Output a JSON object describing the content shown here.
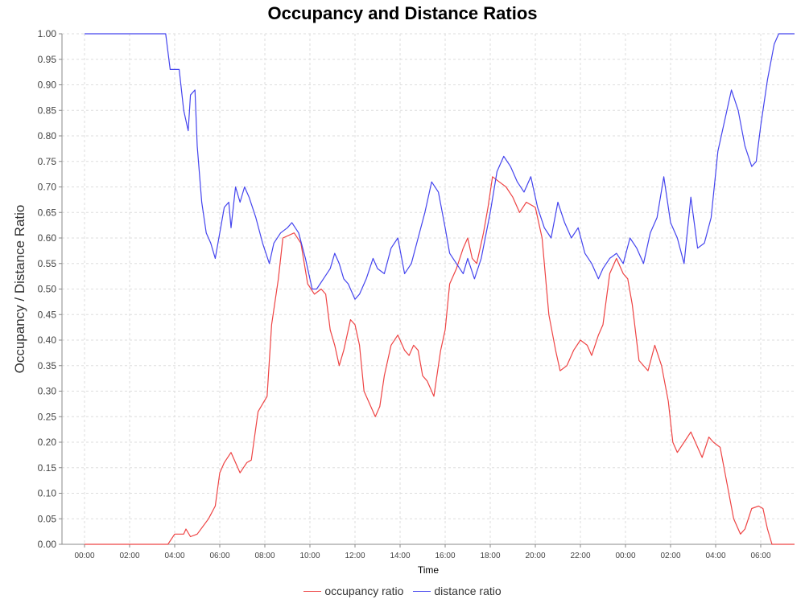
{
  "chart_data": {
    "type": "line",
    "title": "Occupancy and Distance Ratios",
    "xlabel": "Time",
    "ylabel": "Occupancy / Distance Ratio",
    "ylim": [
      0,
      1
    ],
    "y_ticks": [
      "0.00",
      "0.05",
      "0.10",
      "0.15",
      "0.20",
      "0.25",
      "0.30",
      "0.35",
      "0.40",
      "0.45",
      "0.50",
      "0.55",
      "0.60",
      "0.65",
      "0.70",
      "0.75",
      "0.80",
      "0.85",
      "0.90",
      "0.95",
      "1.00"
    ],
    "x_ticks": [
      "00:00",
      "02:00",
      "04:00",
      "06:00",
      "08:00",
      "10:00",
      "12:00",
      "14:00",
      "16:00",
      "18:00",
      "20:00",
      "22:00",
      "00:00",
      "02:00",
      "04:00",
      "06:00"
    ],
    "x_unit": "hours",
    "x_range": [
      -1,
      31.5
    ],
    "grid": true,
    "legend_position": "bottom-center",
    "series": [
      {
        "name": "occupancy ratio",
        "color": "#ee4444",
        "points": [
          [
            0,
            0
          ],
          [
            3.7,
            0
          ],
          [
            4.0,
            0.02
          ],
          [
            4.4,
            0.02
          ],
          [
            4.5,
            0.03
          ],
          [
            4.7,
            0.015
          ],
          [
            5.0,
            0.02
          ],
          [
            5.5,
            0.05
          ],
          [
            5.8,
            0.075
          ],
          [
            6.0,
            0.14
          ],
          [
            6.2,
            0.16
          ],
          [
            6.5,
            0.18
          ],
          [
            6.9,
            0.14
          ],
          [
            7.2,
            0.16
          ],
          [
            7.4,
            0.165
          ],
          [
            7.7,
            0.26
          ],
          [
            8.1,
            0.29
          ],
          [
            8.3,
            0.43
          ],
          [
            8.6,
            0.52
          ],
          [
            8.8,
            0.6
          ],
          [
            9.3,
            0.61
          ],
          [
            9.6,
            0.59
          ],
          [
            9.9,
            0.51
          ],
          [
            10.2,
            0.49
          ],
          [
            10.5,
            0.5
          ],
          [
            10.7,
            0.49
          ],
          [
            10.9,
            0.42
          ],
          [
            11.1,
            0.39
          ],
          [
            11.3,
            0.35
          ],
          [
            11.5,
            0.38
          ],
          [
            11.8,
            0.44
          ],
          [
            12.0,
            0.43
          ],
          [
            12.2,
            0.39
          ],
          [
            12.4,
            0.3
          ],
          [
            12.7,
            0.27
          ],
          [
            12.9,
            0.25
          ],
          [
            13.1,
            0.27
          ],
          [
            13.3,
            0.33
          ],
          [
            13.6,
            0.39
          ],
          [
            13.9,
            0.41
          ],
          [
            14.2,
            0.38
          ],
          [
            14.4,
            0.37
          ],
          [
            14.6,
            0.39
          ],
          [
            14.8,
            0.38
          ],
          [
            15.0,
            0.33
          ],
          [
            15.2,
            0.32
          ],
          [
            15.5,
            0.29
          ],
          [
            15.8,
            0.38
          ],
          [
            16.0,
            0.42
          ],
          [
            16.2,
            0.51
          ],
          [
            16.5,
            0.54
          ],
          [
            16.8,
            0.58
          ],
          [
            17.0,
            0.6
          ],
          [
            17.2,
            0.56
          ],
          [
            17.4,
            0.55
          ],
          [
            17.7,
            0.61
          ],
          [
            17.9,
            0.66
          ],
          [
            18.1,
            0.72
          ],
          [
            18.4,
            0.71
          ],
          [
            18.7,
            0.7
          ],
          [
            19.0,
            0.68
          ],
          [
            19.3,
            0.65
          ],
          [
            19.6,
            0.67
          ],
          [
            20.0,
            0.66
          ],
          [
            20.3,
            0.6
          ],
          [
            20.6,
            0.45
          ],
          [
            20.9,
            0.38
          ],
          [
            21.1,
            0.34
          ],
          [
            21.4,
            0.35
          ],
          [
            21.7,
            0.38
          ],
          [
            22.0,
            0.4
          ],
          [
            22.3,
            0.39
          ],
          [
            22.5,
            0.37
          ],
          [
            22.8,
            0.41
          ],
          [
            23.0,
            0.43
          ],
          [
            23.3,
            0.53
          ],
          [
            23.6,
            0.56
          ],
          [
            23.9,
            0.53
          ],
          [
            24.1,
            0.52
          ],
          [
            24.3,
            0.47
          ],
          [
            24.6,
            0.36
          ],
          [
            25.0,
            0.34
          ],
          [
            25.3,
            0.39
          ],
          [
            25.6,
            0.35
          ],
          [
            25.9,
            0.28
          ],
          [
            26.1,
            0.2
          ],
          [
            26.3,
            0.18
          ],
          [
            26.6,
            0.2
          ],
          [
            26.9,
            0.22
          ],
          [
            27.1,
            0.2
          ],
          [
            27.4,
            0.17
          ],
          [
            27.7,
            0.21
          ],
          [
            27.9,
            0.2
          ],
          [
            28.2,
            0.19
          ],
          [
            28.5,
            0.12
          ],
          [
            28.8,
            0.05
          ],
          [
            29.1,
            0.02
          ],
          [
            29.3,
            0.03
          ],
          [
            29.6,
            0.07
          ],
          [
            29.9,
            0.075
          ],
          [
            30.1,
            0.07
          ],
          [
            30.3,
            0.03
          ],
          [
            30.5,
            0
          ],
          [
            31.5,
            0
          ]
        ]
      },
      {
        "name": "distance ratio",
        "color": "#4444ee",
        "points": [
          [
            0,
            1
          ],
          [
            3.6,
            1
          ],
          [
            3.8,
            0.93
          ],
          [
            4.2,
            0.93
          ],
          [
            4.4,
            0.85
          ],
          [
            4.6,
            0.81
          ],
          [
            4.7,
            0.88
          ],
          [
            4.9,
            0.89
          ],
          [
            5.0,
            0.78
          ],
          [
            5.2,
            0.67
          ],
          [
            5.4,
            0.61
          ],
          [
            5.6,
            0.59
          ],
          [
            5.8,
            0.56
          ],
          [
            6.0,
            0.61
          ],
          [
            6.2,
            0.66
          ],
          [
            6.4,
            0.67
          ],
          [
            6.5,
            0.62
          ],
          [
            6.7,
            0.7
          ],
          [
            6.9,
            0.67
          ],
          [
            7.1,
            0.7
          ],
          [
            7.3,
            0.68
          ],
          [
            7.6,
            0.64
          ],
          [
            7.9,
            0.59
          ],
          [
            8.2,
            0.55
          ],
          [
            8.4,
            0.59
          ],
          [
            8.7,
            0.61
          ],
          [
            9.0,
            0.62
          ],
          [
            9.2,
            0.63
          ],
          [
            9.5,
            0.61
          ],
          [
            9.8,
            0.56
          ],
          [
            10.1,
            0.5
          ],
          [
            10.3,
            0.5
          ],
          [
            10.6,
            0.52
          ],
          [
            10.9,
            0.54
          ],
          [
            11.1,
            0.57
          ],
          [
            11.3,
            0.55
          ],
          [
            11.5,
            0.52
          ],
          [
            11.7,
            0.51
          ],
          [
            12.0,
            0.48
          ],
          [
            12.2,
            0.49
          ],
          [
            12.5,
            0.52
          ],
          [
            12.8,
            0.56
          ],
          [
            13.0,
            0.54
          ],
          [
            13.3,
            0.53
          ],
          [
            13.6,
            0.58
          ],
          [
            13.9,
            0.6
          ],
          [
            14.2,
            0.53
          ],
          [
            14.5,
            0.55
          ],
          [
            14.8,
            0.6
          ],
          [
            15.1,
            0.65
          ],
          [
            15.4,
            0.71
          ],
          [
            15.7,
            0.69
          ],
          [
            16.0,
            0.62
          ],
          [
            16.2,
            0.57
          ],
          [
            16.5,
            0.55
          ],
          [
            16.8,
            0.53
          ],
          [
            17.0,
            0.56
          ],
          [
            17.3,
            0.52
          ],
          [
            17.6,
            0.56
          ],
          [
            18.0,
            0.65
          ],
          [
            18.3,
            0.73
          ],
          [
            18.6,
            0.76
          ],
          [
            18.9,
            0.74
          ],
          [
            19.2,
            0.71
          ],
          [
            19.5,
            0.69
          ],
          [
            19.8,
            0.72
          ],
          [
            20.1,
            0.66
          ],
          [
            20.4,
            0.62
          ],
          [
            20.7,
            0.6
          ],
          [
            21.0,
            0.67
          ],
          [
            21.3,
            0.63
          ],
          [
            21.6,
            0.6
          ],
          [
            21.9,
            0.62
          ],
          [
            22.2,
            0.57
          ],
          [
            22.5,
            0.55
          ],
          [
            22.8,
            0.52
          ],
          [
            23.0,
            0.54
          ],
          [
            23.3,
            0.56
          ],
          [
            23.6,
            0.57
          ],
          [
            23.9,
            0.55
          ],
          [
            24.2,
            0.6
          ],
          [
            24.5,
            0.58
          ],
          [
            24.8,
            0.55
          ],
          [
            25.1,
            0.61
          ],
          [
            25.4,
            0.64
          ],
          [
            25.7,
            0.72
          ],
          [
            26.0,
            0.63
          ],
          [
            26.3,
            0.6
          ],
          [
            26.6,
            0.55
          ],
          [
            26.9,
            0.68
          ],
          [
            27.2,
            0.58
          ],
          [
            27.5,
            0.59
          ],
          [
            27.8,
            0.64
          ],
          [
            28.1,
            0.77
          ],
          [
            28.4,
            0.83
          ],
          [
            28.7,
            0.89
          ],
          [
            29.0,
            0.85
          ],
          [
            29.3,
            0.78
          ],
          [
            29.6,
            0.74
          ],
          [
            29.8,
            0.75
          ],
          [
            30.0,
            0.82
          ],
          [
            30.3,
            0.91
          ],
          [
            30.6,
            0.98
          ],
          [
            30.8,
            1.0
          ],
          [
            31.5,
            1.0
          ]
        ]
      }
    ]
  }
}
